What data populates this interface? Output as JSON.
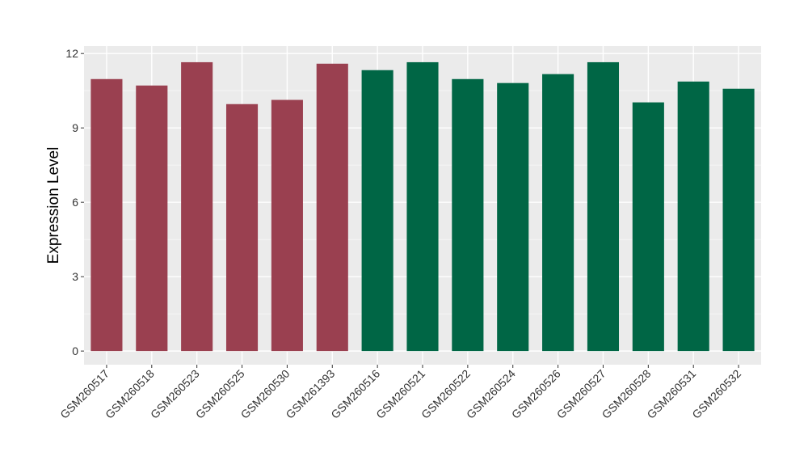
{
  "chart_data": {
    "type": "bar",
    "title": "",
    "xlabel": "",
    "ylabel": "Expression Level",
    "ylim": [
      -0.55,
      12.3
    ],
    "yticks": [
      0,
      3,
      6,
      9,
      12
    ],
    "grid": true,
    "categories": [
      "GSM260517",
      "GSM260518",
      "GSM260523",
      "GSM260525",
      "GSM260530",
      "GSM261393",
      "GSM260516",
      "GSM260521",
      "GSM260522",
      "GSM260524",
      "GSM260526",
      "GSM260527",
      "GSM260528",
      "GSM260531",
      "GSM260532"
    ],
    "values": [
      10.97,
      10.71,
      11.65,
      9.96,
      10.13,
      11.59,
      11.33,
      11.65,
      10.97,
      10.81,
      11.17,
      11.65,
      10.03,
      10.87,
      10.58
    ],
    "groups": [
      0,
      0,
      0,
      0,
      0,
      0,
      1,
      1,
      1,
      1,
      1,
      1,
      1,
      1,
      1
    ],
    "colors": [
      "#9a4050",
      "#006645"
    ],
    "background": "#ebebeb"
  }
}
